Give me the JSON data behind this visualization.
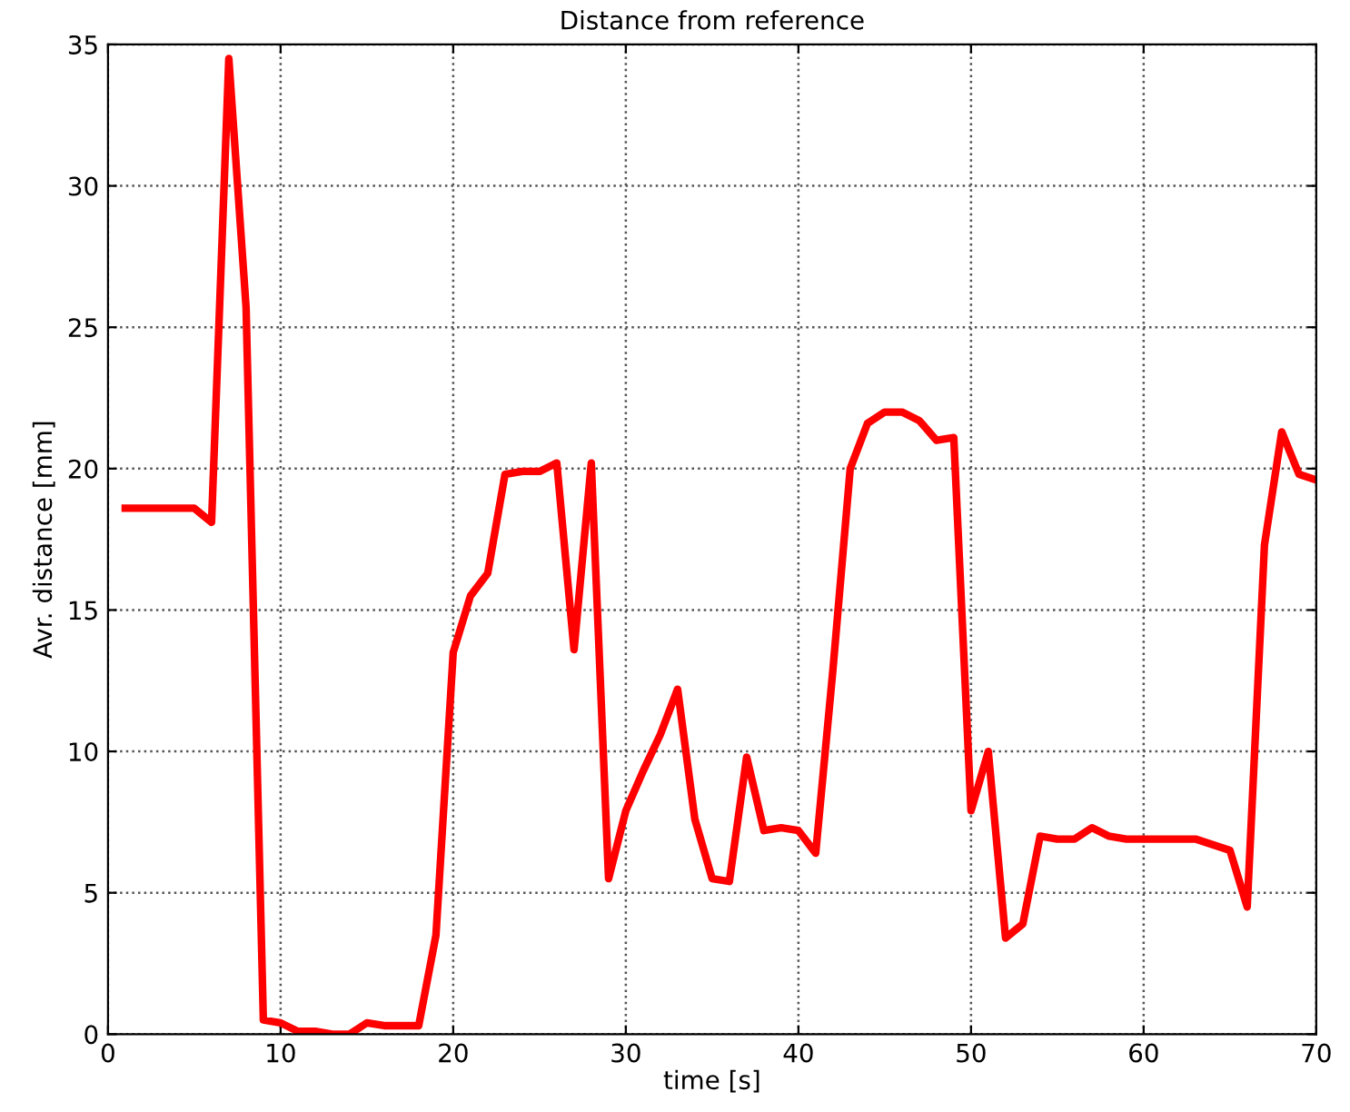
{
  "chart_data": {
    "type": "line",
    "title": "Distance from reference",
    "xlabel": "time [s]",
    "ylabel": "Avr. distance [mm]",
    "x": [
      1,
      2,
      3,
      4,
      5,
      6,
      7,
      8,
      9,
      10,
      11,
      12,
      13,
      14,
      15,
      16,
      17,
      18,
      19,
      20,
      21,
      22,
      23,
      24,
      25,
      26,
      27,
      28,
      29,
      30,
      31,
      32,
      33,
      34,
      35,
      36,
      37,
      38,
      39,
      40,
      41,
      42,
      43,
      44,
      45,
      46,
      47,
      48,
      49,
      50,
      51,
      52,
      53,
      54,
      55,
      56,
      57,
      58,
      59,
      60,
      61,
      62,
      63,
      64,
      65,
      66,
      67,
      68,
      69,
      70
    ],
    "series": [
      {
        "color": "#ff0000",
        "values": [
          18.6,
          18.6,
          18.6,
          18.6,
          18.6,
          18.1,
          34.5,
          25.7,
          0.5,
          0.4,
          0.1,
          0.1,
          0.0,
          0.0,
          0.4,
          0.3,
          0.3,
          0.3,
          3.5,
          13.5,
          15.5,
          16.3,
          19.8,
          19.9,
          19.9,
          20.2,
          13.6,
          20.2,
          5.5,
          7.9,
          9.3,
          10.6,
          12.2,
          7.6,
          5.5,
          5.4,
          9.8,
          7.2,
          7.3,
          7.2,
          6.4,
          12.9,
          20.0,
          21.6,
          22.0,
          22.0,
          21.7,
          21.0,
          21.1,
          7.9,
          10.0,
          3.4,
          3.9,
          7.0,
          6.9,
          6.9,
          7.3,
          7.0,
          6.9,
          6.9,
          6.9,
          6.9,
          6.9,
          6.7,
          6.5,
          4.5,
          17.3,
          21.3,
          19.8,
          19.6
        ]
      }
    ],
    "xlim": [
      0,
      70
    ],
    "xticks": [
      0,
      10,
      20,
      30,
      40,
      50,
      60,
      70
    ],
    "ylim": [
      0,
      35
    ],
    "yticks": [
      0,
      5,
      10,
      15,
      20,
      25,
      30,
      35
    ],
    "grid": true,
    "line_style": "solid",
    "marker": "none"
  }
}
